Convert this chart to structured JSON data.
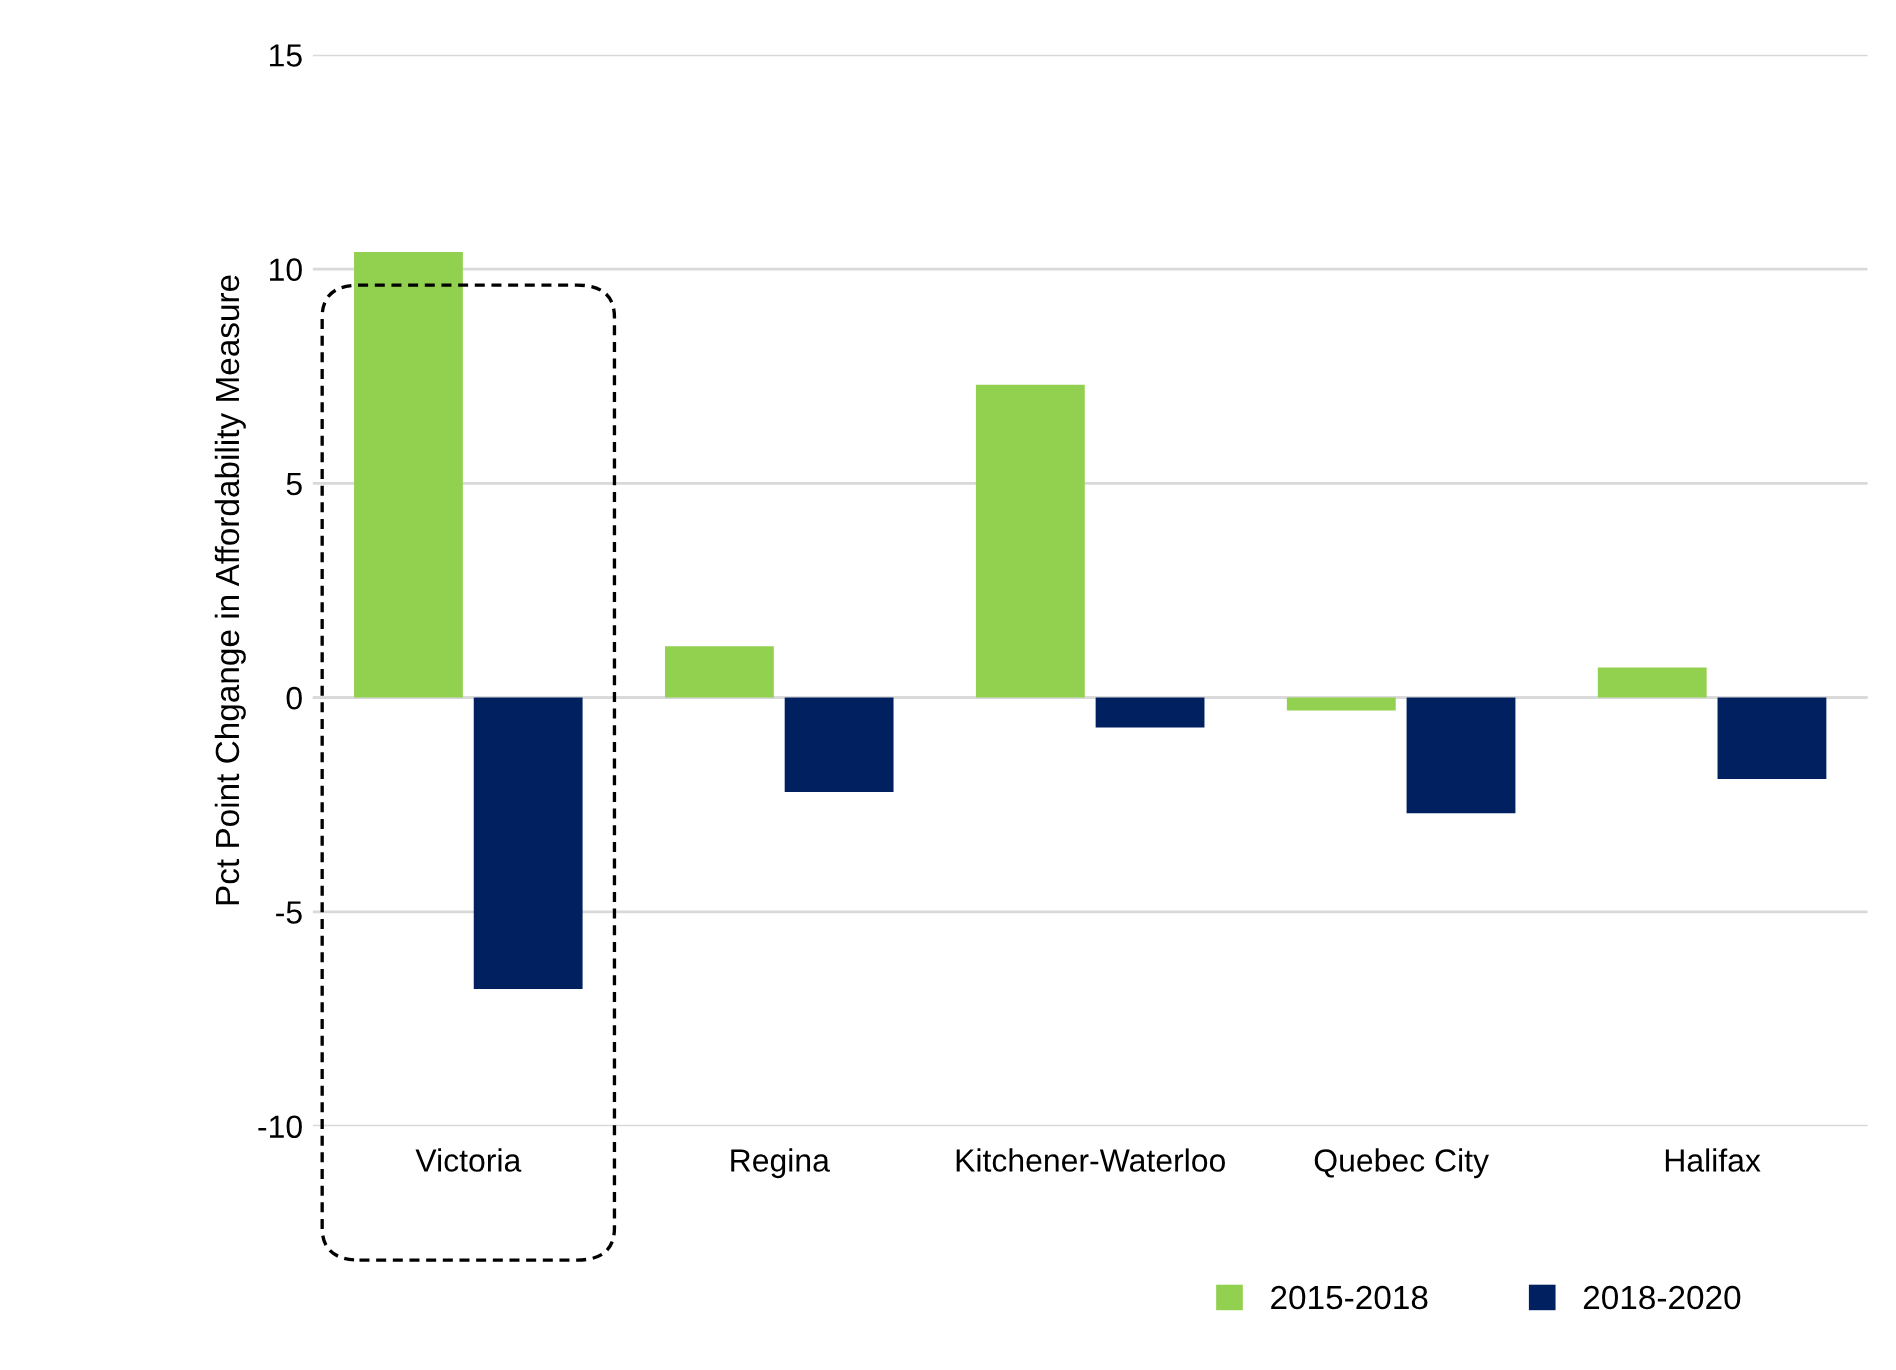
{
  "chart_data": {
    "type": "bar",
    "ylabel": "Pct Point Chgange in Affordability Measure",
    "categories": [
      "Victoria",
      "Regina",
      "Kitchener-Waterloo",
      "Quebec City",
      "Halifax"
    ],
    "series": [
      {
        "name": "2015-2018",
        "color": "#92d050",
        "values": [
          10.4,
          1.2,
          7.3,
          -0.3,
          0.7
        ]
      },
      {
        "name": "2018-2020",
        "color": "#002060",
        "values": [
          -6.8,
          -2.2,
          -0.7,
          -2.7,
          -1.9
        ]
      }
    ],
    "ylim": [
      -10,
      15
    ],
    "yticks": [
      -10,
      -5,
      0,
      5,
      10,
      15
    ],
    "grid": "y",
    "legend": "bottom"
  }
}
